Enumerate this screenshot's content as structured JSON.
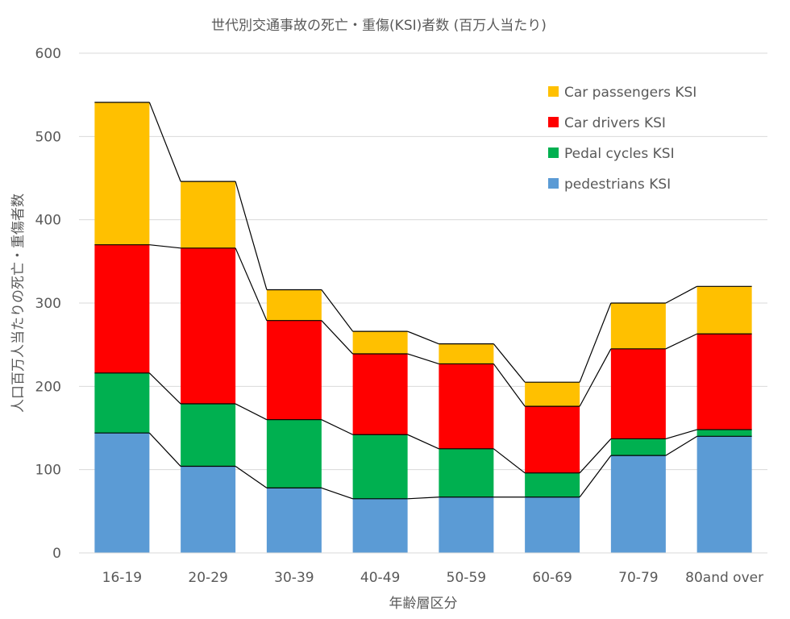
{
  "chart_data": {
    "type": "bar",
    "stacked": true,
    "title": "世代別交通事故の死亡・重傷(KSI)者数 (百万人当たり)",
    "xlabel": "年齢層区分",
    "ylabel": "人口百万人当たりの死亡・重傷者数",
    "ylim": [
      0,
      600
    ],
    "yticks": [
      0,
      100,
      200,
      300,
      400,
      500,
      600
    ],
    "grid": true,
    "legend_position": "top-right",
    "categories": [
      "16-19",
      "20-29",
      "30-39",
      "40-49",
      "50-59",
      "60-69",
      "70-79",
      "80and over"
    ],
    "series": [
      {
        "name": "pedestrians KSI",
        "color": "#5B9BD5",
        "values": [
          144,
          104,
          78,
          65,
          67,
          67,
          117,
          140
        ]
      },
      {
        "name": "Pedal cycles KSI",
        "color": "#00B050",
        "values": [
          72,
          75,
          82,
          77,
          58,
          29,
          20,
          8
        ]
      },
      {
        "name": "Car drivers KSI",
        "color": "#FF0000",
        "values": [
          154,
          187,
          119,
          97,
          102,
          80,
          108,
          115
        ]
      },
      {
        "name": "Car passengers KSI",
        "color": "#FFC000",
        "values": [
          171,
          80,
          37,
          27,
          24,
          29,
          55,
          57
        ]
      }
    ],
    "legend_order": [
      "Car passengers KSI",
      "Car drivers KSI",
      "Pedal cycles KSI",
      "pedestrians KSI"
    ]
  }
}
